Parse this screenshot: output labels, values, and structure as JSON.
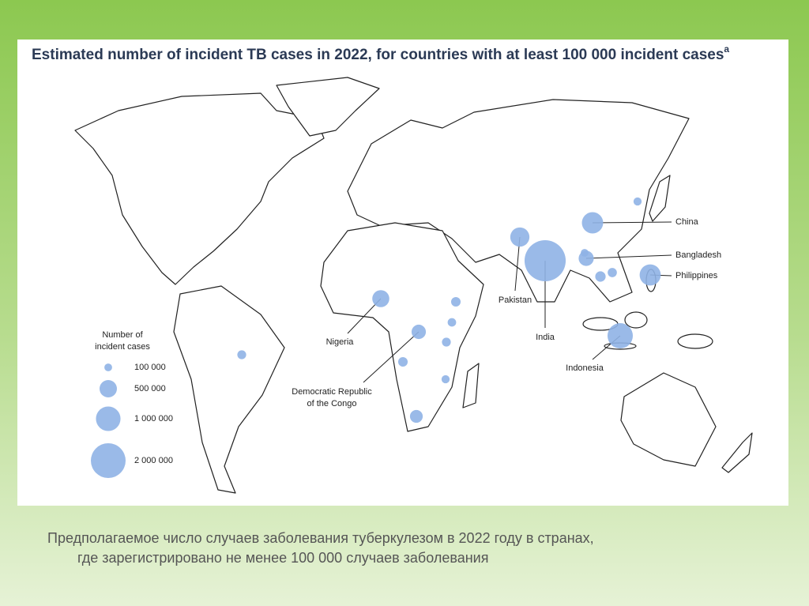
{
  "title": "Estimated number of incident TB cases in 2022, for countries with at least 100 000 incident cases",
  "title_note": "a",
  "legend": {
    "title_lines": [
      "Number of",
      "incident cases"
    ],
    "entries": [
      {
        "value": 100000,
        "label": "100 000"
      },
      {
        "value": 500000,
        "label": "500 000"
      },
      {
        "value": 1000000,
        "label": "1 000 000"
      },
      {
        "value": 2000000,
        "label": "2 000 000"
      }
    ]
  },
  "countries": [
    {
      "label_lines": [
        "China"
      ],
      "cases": 750000
    },
    {
      "label_lines": [
        "Bangladesh"
      ],
      "cases": 380000
    },
    {
      "label_lines": [
        "Philippines"
      ],
      "cases": 740000
    },
    {
      "label_lines": [
        "Pakistan"
      ],
      "cases": 610000
    },
    {
      "label_lines": [
        "India"
      ],
      "cases": 2800000
    },
    {
      "label_lines": [
        "Indonesia"
      ],
      "cases": 1060000
    },
    {
      "label_lines": [
        "Nigeria"
      ],
      "cases": 480000
    },
    {
      "label_lines": [
        "Democratic Republic",
        "of the Congo"
      ],
      "cases": 340000
    }
  ],
  "other_cases": [
    150000,
    120000,
    130000,
    110000,
    150000,
    270000,
    180000,
    140000,
    110000,
    130000,
    100000
  ],
  "caption_lines": [
    "Предполагаемое число случаев заболевания туберкулезом в 2022 году в странах,",
    "где зарегистрировано не менее 100 000 случаев заболевания"
  ]
}
